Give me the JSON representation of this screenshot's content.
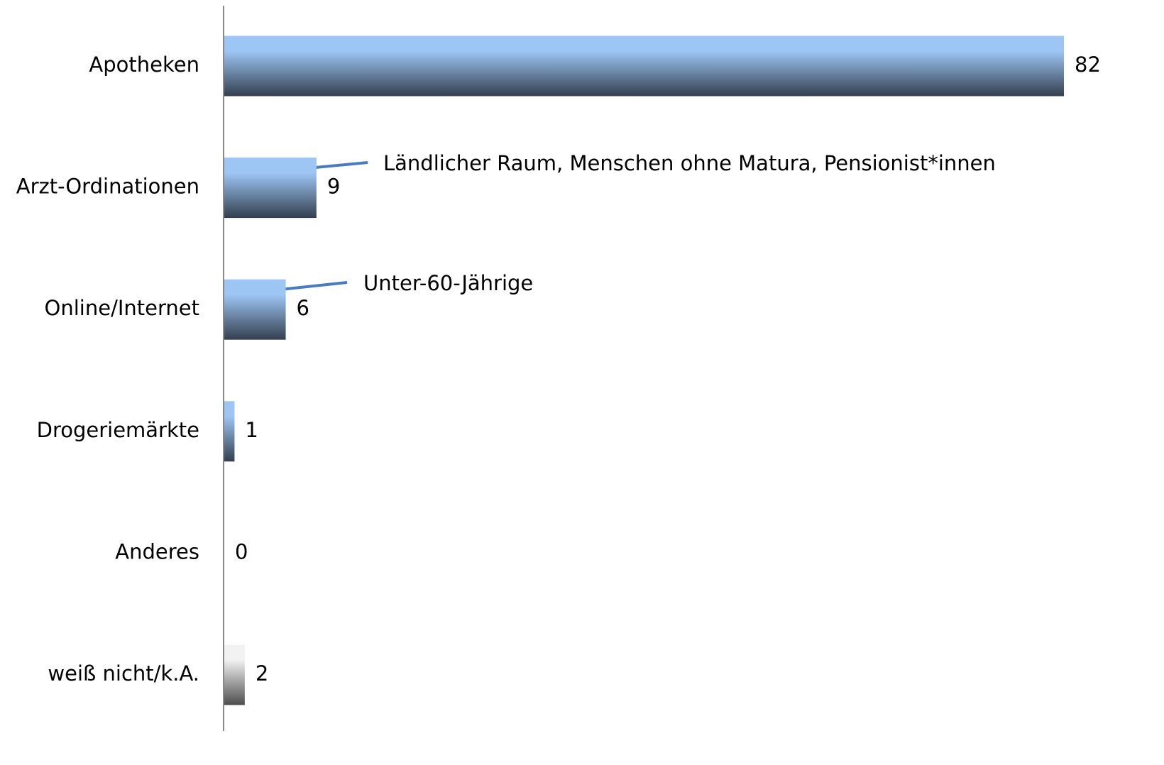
{
  "chart_data": {
    "type": "barh",
    "categories": [
      "Apotheken",
      "Arzt-Ordinationen",
      "Online/Internet",
      "Drogeriemärkte",
      "Anderes",
      "weiß nicht/k.A."
    ],
    "values": [
      82,
      9,
      6,
      1,
      0,
      2
    ],
    "colors": [
      "#9ec6f5",
      "#9ec6f5",
      "#9ec6f5",
      "#9ec6f5",
      "#9ec6f5",
      "#f2f2f2"
    ],
    "xlim": [
      0,
      82
    ],
    "annotations": [
      "Ländlicher Raum, Menschen ohne Matura, Pensionist*innen",
      "Unter-60-Jährige"
    ],
    "annotation_color": "#5b8ed6"
  }
}
